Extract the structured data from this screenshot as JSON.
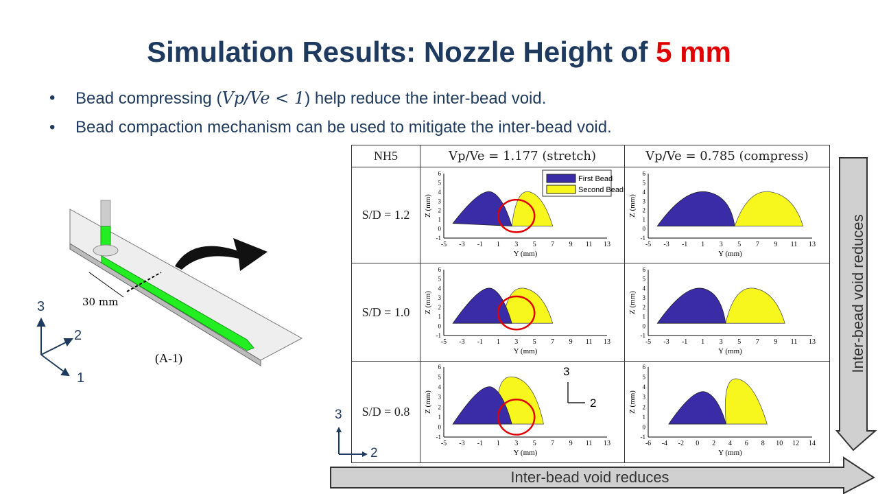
{
  "slide": {
    "title_main": "Simulation Results: Nozzle Height of ",
    "title_highlight": "5 mm",
    "bullets": [
      {
        "pre": "Bead compressing (",
        "math": "Vp/Ve < 1",
        "post": ") help reduce the inter-bead void."
      },
      {
        "pre": "Bead compaction mechanism can be used to mitigate the inter-bead void.",
        "math": "",
        "post": ""
      }
    ],
    "bullet_symbol": "•"
  },
  "illustration": {
    "label_30mm": "30 mm",
    "caption": "(A-1)",
    "axis_labels": {
      "axis1": "1",
      "axis2": "2",
      "axis3": "3"
    }
  },
  "table": {
    "corner_label": "NH5",
    "col_headers": [
      "Vp/Ve = 1.177 (stretch)",
      "Vp/Ve = 0.785 (compress)"
    ],
    "row_labels": [
      "S/D = 1.2",
      "S/D = 1.0",
      "S/D = 0.8"
    ],
    "xlabel": "Y (mm)",
    "ylabel": "Z (mm)",
    "legend": [
      "First Bead",
      "Second Bead"
    ],
    "inset_axes": {
      "axis2": "2",
      "axis3": "3"
    },
    "left_axes": {
      "axis2": "2",
      "axis3": "3"
    }
  },
  "arrows": {
    "vertical_label": "Inter-bead void reduces",
    "horizontal_label": "Inter-bead void reduces"
  },
  "colors": {
    "title": "#1f3a5f",
    "highlight": "#e00000",
    "first_bead": "#3a2ca6",
    "second_bead": "#f7f71e",
    "void_circle": "#e00000",
    "arrow_fill": "#d0d0d0",
    "arrow_stroke": "#333333",
    "filament": "#22ee22"
  },
  "chart_data": [
    {
      "type": "other",
      "row": "S/D = 1.2",
      "col": "Vp/Ve = 1.177 (stretch)",
      "xlabel": "Y (mm)",
      "ylabel": "Z (mm)",
      "xticks": [
        "-5",
        "-3",
        "-1",
        "1",
        "3",
        "5",
        "7",
        "9",
        "11",
        "13"
      ],
      "yticks": [
        "6",
        "5",
        "4",
        "3",
        "2",
        "1",
        "0",
        "-1"
      ],
      "xlim": [
        -5,
        13
      ],
      "ylim": [
        -1,
        6
      ],
      "legend": [
        "First Bead",
        "Second Bead"
      ],
      "void_circle": true
    },
    {
      "type": "other",
      "row": "S/D = 1.2",
      "col": "Vp/Ve = 0.785 (compress)",
      "xlabel": "Y (mm)",
      "ylabel": "Z (mm)",
      "xticks": [
        "-5",
        "-3",
        "-1",
        "1",
        "3",
        "5",
        "7",
        "9",
        "11",
        "13"
      ],
      "yticks": [
        "6",
        "5",
        "4",
        "3",
        "2",
        "1",
        "0",
        "-1"
      ],
      "xlim": [
        -5,
        13
      ],
      "ylim": [
        -1,
        6
      ],
      "void_circle": false
    },
    {
      "type": "other",
      "row": "S/D = 1.0",
      "col": "Vp/Ve = 1.177 (stretch)",
      "xlabel": "Y (mm)",
      "ylabel": "Z (mm)",
      "xticks": [
        "-5",
        "-3",
        "-1",
        "1",
        "3",
        "5",
        "7",
        "9",
        "11",
        "13"
      ],
      "yticks": [
        "6",
        "5",
        "4",
        "3",
        "2",
        "1",
        "0",
        "-1"
      ],
      "xlim": [
        -5,
        13
      ],
      "ylim": [
        -1,
        6
      ],
      "void_circle": true
    },
    {
      "type": "other",
      "row": "S/D = 1.0",
      "col": "Vp/Ve = 0.785 (compress)",
      "xlabel": "Y (mm)",
      "ylabel": "Z (mm)",
      "xticks": [
        "-5",
        "-3",
        "-1",
        "1",
        "3",
        "5",
        "7",
        "9",
        "11",
        "13"
      ],
      "yticks": [
        "6",
        "5",
        "4",
        "3",
        "2",
        "1",
        "0",
        "-1"
      ],
      "xlim": [
        -5,
        13
      ],
      "ylim": [
        -1,
        6
      ],
      "void_circle": false
    },
    {
      "type": "other",
      "row": "S/D = 0.8",
      "col": "Vp/Ve = 1.177 (stretch)",
      "xlabel": "Y (mm)",
      "ylabel": "Z (mm)",
      "xticks": [
        "-5",
        "-3",
        "-1",
        "1",
        "3",
        "5",
        "7",
        "9",
        "11",
        "13"
      ],
      "yticks": [
        "6",
        "5",
        "4",
        "3",
        "2",
        "1",
        "0",
        "-1"
      ],
      "xlim": [
        -5,
        13
      ],
      "ylim": [
        -1,
        6
      ],
      "void_circle": true
    },
    {
      "type": "other",
      "row": "S/D = 0.8",
      "col": "Vp/Ve = 0.785 (compress)",
      "xlabel": "Y (mm)",
      "ylabel": "Z (mm)",
      "xticks": [
        "-6",
        "-4",
        "-2",
        "0",
        "2",
        "4",
        "6",
        "8",
        "10",
        "12",
        "14"
      ],
      "yticks": [
        "6",
        "5",
        "4",
        "3",
        "2",
        "1",
        "0",
        "-1"
      ],
      "xlim": [
        -6,
        14
      ],
      "ylim": [
        -1,
        6
      ],
      "void_circle": false
    }
  ]
}
